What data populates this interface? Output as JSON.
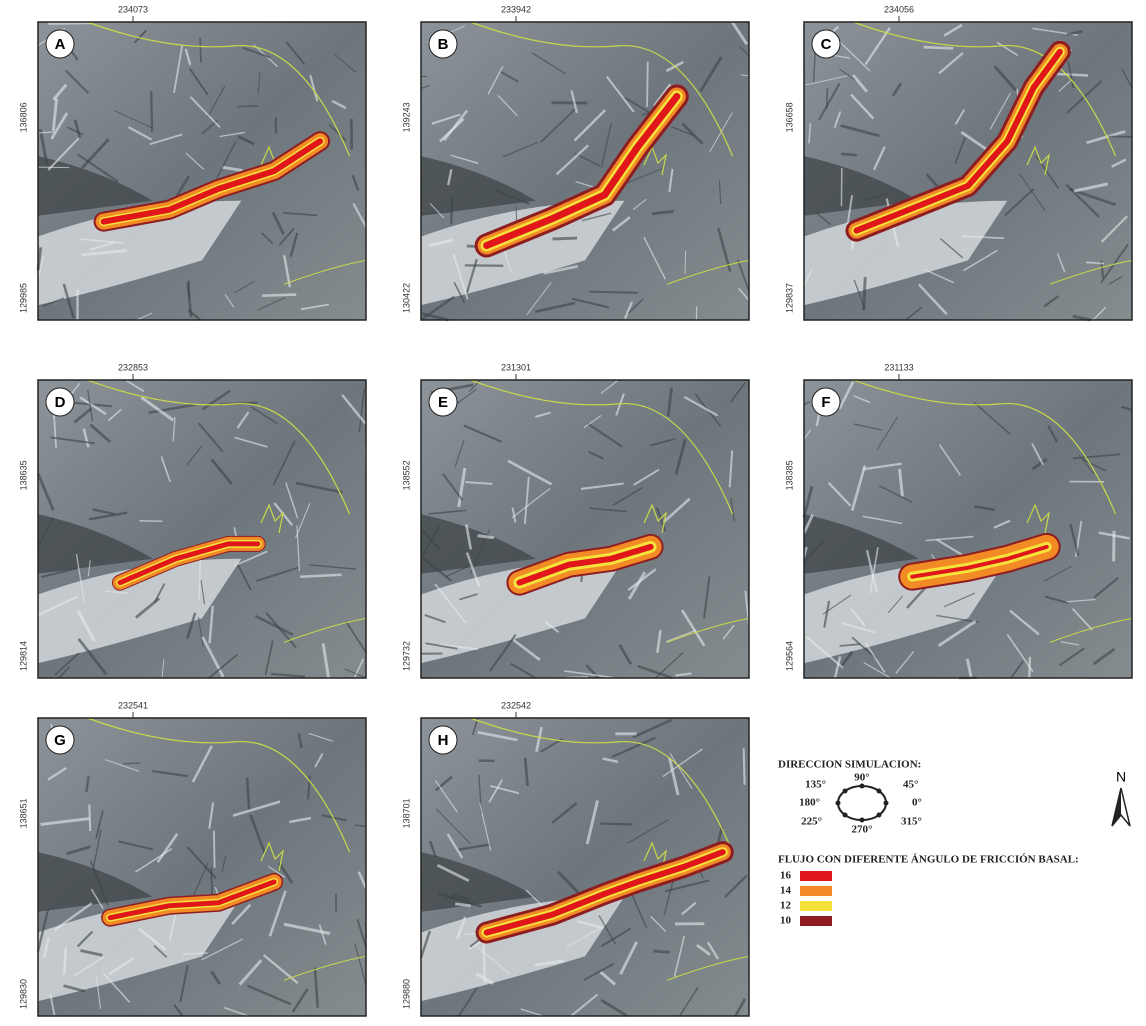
{
  "panels": [
    {
      "label": "A",
      "x_top": "234073",
      "y_top": "136806",
      "y_bottom": "129985"
    },
    {
      "label": "B",
      "x_top": "233942",
      "y_top": "139243",
      "y_bottom": "130422"
    },
    {
      "label": "C",
      "x_top": "234056",
      "y_top": "136658",
      "y_bottom": "129837"
    },
    {
      "label": "D",
      "x_top": "232853",
      "y_top": "138635",
      "y_bottom": "129814"
    },
    {
      "label": "E",
      "x_top": "231301",
      "y_top": "138552",
      "y_bottom": "129732"
    },
    {
      "label": "F",
      "x_top": "231133",
      "y_top": "138385",
      "y_bottom": "129564"
    },
    {
      "label": "G",
      "x_top": "232541",
      "y_top": "138651",
      "y_bottom": "129830"
    },
    {
      "label": "H",
      "x_top": "232542",
      "y_top": "138701",
      "y_bottom": "129880"
    }
  ],
  "legend": {
    "direction_title": "DIRECCION SIMULACION:",
    "angles": [
      "90°",
      "45°",
      "0°",
      "315°",
      "270°",
      "225°",
      "180°",
      "135°"
    ],
    "north": "N",
    "flow_title": "FLUJO CON DIFERENTE ÁNGULO DE FRICCIÓN BASAL:",
    "items": [
      {
        "label": "16",
        "color": "#e0161b"
      },
      {
        "label": "14",
        "color": "#f28a26"
      },
      {
        "label": "12",
        "color": "#f3e33b"
      },
      {
        "label": "10",
        "color": "#8e1d22"
      }
    ]
  }
}
